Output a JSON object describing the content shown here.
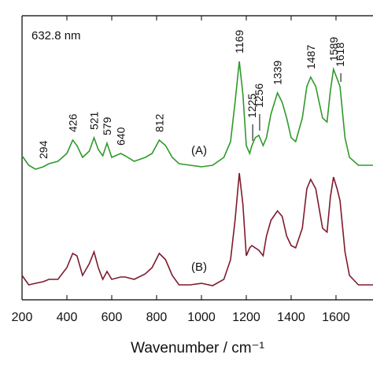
{
  "chart_data": {
    "type": "line",
    "title": "632.8 nm",
    "x_label": "Wavenumber / cm⁻¹",
    "xlim": [
      200,
      1765
    ],
    "ylim": [
      0,
      361
    ],
    "xticks": [
      200,
      400,
      600,
      800,
      1000,
      1200,
      1400,
      1600
    ],
    "x": [
      200,
      230,
      260,
      294,
      320,
      360,
      400,
      426,
      445,
      470,
      500,
      521,
      540,
      560,
      579,
      600,
      640,
      660,
      700,
      750,
      780,
      812,
      840,
      870,
      900,
      950,
      1000,
      1050,
      1100,
      1130,
      1150,
      1169,
      1185,
      1200,
      1215,
      1225,
      1240,
      1256,
      1275,
      1290,
      1310,
      1339,
      1360,
      1380,
      1400,
      1420,
      1450,
      1470,
      1487,
      1510,
      1540,
      1560,
      1575,
      1589,
      1605,
      1618,
      1640,
      1660,
      1700,
      1765
    ],
    "series": [
      {
        "name": "(A)",
        "color": "#2f9a2a",
        "values": [
          183,
          171,
          166,
          169,
          173,
          176,
          186,
          203,
          196,
          181,
          189,
          206,
          191,
          183,
          199,
          181,
          186,
          183,
          176,
          181,
          186,
          203,
          196,
          181,
          173,
          171,
          169,
          171,
          181,
          201,
          251,
          303,
          261,
          196,
          186,
          196,
          206,
          209,
          196,
          206,
          236,
          263,
          251,
          231,
          206,
          201,
          231,
          271,
          283,
          271,
          231,
          226,
          266,
          293,
          281,
          271,
          206,
          181,
          171,
          171
        ]
      },
      {
        "name": "(B)",
        "color": "#7d1b2c",
        "values": [
          31,
          19,
          21,
          23,
          26,
          26,
          41,
          59,
          56,
          31,
          46,
          61,
          41,
          26,
          36,
          26,
          29,
          29,
          26,
          33,
          41,
          59,
          51,
          31,
          19,
          19,
          21,
          18,
          26,
          51,
          101,
          161,
          121,
          56,
          66,
          69,
          66,
          63,
          56,
          81,
          101,
          113,
          106,
          81,
          69,
          66,
          91,
          141,
          153,
          141,
          91,
          86,
          131,
          156,
          141,
          126,
          61,
          31,
          19,
          19
        ]
      }
    ],
    "annotations": [
      {
        "text": "294",
        "x": 294
      },
      {
        "text": "426",
        "x": 426
      },
      {
        "text": "521",
        "x": 521
      },
      {
        "text": "579",
        "x": 579
      },
      {
        "text": "640",
        "x": 640
      },
      {
        "text": "812",
        "x": 812
      },
      {
        "text": "1169",
        "x": 1169
      },
      {
        "text": "1225",
        "x": 1225
      },
      {
        "text": "1256",
        "x": 1256
      },
      {
        "text": "1339",
        "x": 1339
      },
      {
        "text": "1487",
        "x": 1487
      },
      {
        "text": "1589",
        "x": 1589
      },
      {
        "text": "1618",
        "x": 1618
      }
    ]
  }
}
